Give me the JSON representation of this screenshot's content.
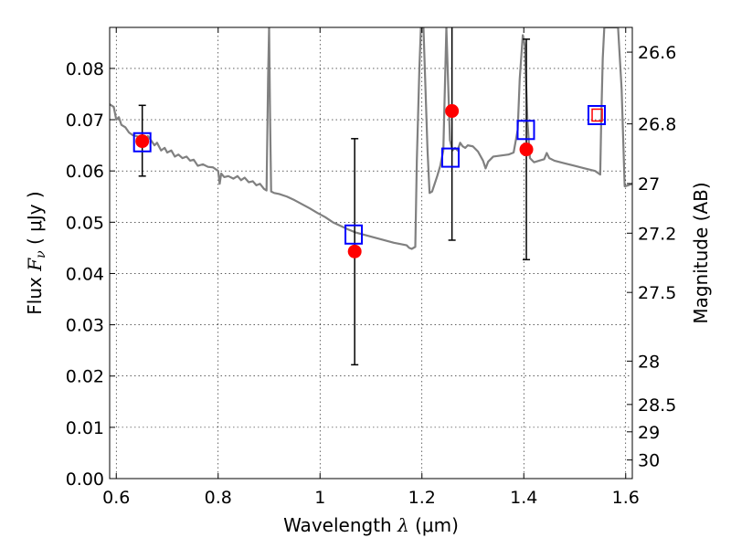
{
  "chart_data": {
    "type": "scatter",
    "xlabel_prefix": "Wavelength",
    "xlabel_symbol": "λ",
    "xlabel_unit": "(μm)",
    "ylabel_prefix": "Flux",
    "ylabel_symbol": "F",
    "ylabel_subscript": "ν",
    "ylabel_unit": "( μJy )",
    "ylabel_right": "Magnitude (AB)",
    "xlim": [
      0.587,
      1.613
    ],
    "ylim": [
      0.0,
      0.088
    ],
    "grid": true,
    "x_ticks": [
      {
        "value": 0.6,
        "label": "0.6"
      },
      {
        "value": 0.8,
        "label": "0.8"
      },
      {
        "value": 1.0,
        "label": "1"
      },
      {
        "value": 1.2,
        "label": "1.2"
      },
      {
        "value": 1.4,
        "label": "1.4"
      },
      {
        "value": 1.6,
        "label": "1.6"
      }
    ],
    "y_ticks": [
      {
        "value": 0.0,
        "label": "0.00"
      },
      {
        "value": 0.01,
        "label": "0.01"
      },
      {
        "value": 0.02,
        "label": "0.02"
      },
      {
        "value": 0.03,
        "label": "0.03"
      },
      {
        "value": 0.04,
        "label": "0.04"
      },
      {
        "value": 0.05,
        "label": "0.05"
      },
      {
        "value": 0.06,
        "label": "0.06"
      },
      {
        "value": 0.07,
        "label": "0.07"
      },
      {
        "value": 0.08,
        "label": "0.08"
      }
    ],
    "right_ticks": [
      {
        "value": 26.6,
        "label": "26.6"
      },
      {
        "value": 26.8,
        "label": "26.8"
      },
      {
        "value": 27.0,
        "label": "27"
      },
      {
        "value": 27.2,
        "label": "27.2"
      },
      {
        "value": 27.5,
        "label": "27.5"
      },
      {
        "value": 28.0,
        "label": "28"
      },
      {
        "value": 28.5,
        "label": "28.5"
      },
      {
        "value": 29.0,
        "label": "29"
      },
      {
        "value": 30.0,
        "label": "30"
      }
    ],
    "series": [
      {
        "kind": "model-spectrum",
        "color": "#808080",
        "points": [
          [
            0.587,
            0.073
          ],
          [
            0.595,
            0.0725
          ],
          [
            0.6,
            0.07
          ],
          [
            0.605,
            0.0705
          ],
          [
            0.61,
            0.069
          ],
          [
            0.618,
            0.0685
          ],
          [
            0.625,
            0.0675
          ],
          [
            0.632,
            0.067
          ],
          [
            0.64,
            0.0668
          ],
          [
            0.648,
            0.0664
          ],
          [
            0.655,
            0.066
          ],
          [
            0.662,
            0.0668
          ],
          [
            0.668,
            0.066
          ],
          [
            0.675,
            0.065
          ],
          [
            0.68,
            0.0655
          ],
          [
            0.688,
            0.064
          ],
          [
            0.695,
            0.0645
          ],
          [
            0.7,
            0.0636
          ],
          [
            0.708,
            0.064
          ],
          [
            0.715,
            0.0628
          ],
          [
            0.722,
            0.0632
          ],
          [
            0.73,
            0.0625
          ],
          [
            0.738,
            0.0628
          ],
          [
            0.745,
            0.062
          ],
          [
            0.752,
            0.0622
          ],
          [
            0.76,
            0.061
          ],
          [
            0.77,
            0.0613
          ],
          [
            0.78,
            0.0608
          ],
          [
            0.79,
            0.0607
          ],
          [
            0.8,
            0.06
          ],
          [
            0.803,
            0.0575
          ],
          [
            0.806,
            0.0595
          ],
          [
            0.812,
            0.0588
          ],
          [
            0.82,
            0.059
          ],
          [
            0.83,
            0.0585
          ],
          [
            0.838,
            0.059
          ],
          [
            0.845,
            0.0582
          ],
          [
            0.852,
            0.0587
          ],
          [
            0.86,
            0.0578
          ],
          [
            0.868,
            0.058
          ],
          [
            0.875,
            0.0572
          ],
          [
            0.882,
            0.0575
          ],
          [
            0.89,
            0.0565
          ],
          [
            0.895,
            0.0562
          ],
          [
            0.898,
            0.078
          ],
          [
            0.9,
            0.088
          ],
          [
            0.902,
            0.07
          ],
          [
            0.904,
            0.056
          ],
          [
            0.91,
            0.0557
          ],
          [
            0.92,
            0.0555
          ],
          [
            0.935,
            0.055
          ],
          [
            0.95,
            0.0543
          ],
          [
            0.965,
            0.0535
          ],
          [
            0.98,
            0.0527
          ],
          [
            0.995,
            0.0518
          ],
          [
            1.01,
            0.051
          ],
          [
            1.025,
            0.05
          ],
          [
            1.04,
            0.0493
          ],
          [
            1.055,
            0.0486
          ],
          [
            1.07,
            0.048
          ],
          [
            1.085,
            0.0476
          ],
          [
            1.1,
            0.0472
          ],
          [
            1.115,
            0.0468
          ],
          [
            1.13,
            0.0464
          ],
          [
            1.145,
            0.046
          ],
          [
            1.16,
            0.0457
          ],
          [
            1.17,
            0.0455
          ],
          [
            1.175,
            0.045
          ],
          [
            1.18,
            0.0448
          ],
          [
            1.187,
            0.0452
          ],
          [
            1.19,
            0.062
          ],
          [
            1.195,
            0.08
          ],
          [
            1.198,
            0.088
          ],
          [
            1.203,
            0.088
          ],
          [
            1.207,
            0.076
          ],
          [
            1.211,
            0.064
          ],
          [
            1.215,
            0.0557
          ],
          [
            1.22,
            0.056
          ],
          [
            1.225,
            0.0575
          ],
          [
            1.23,
            0.059
          ],
          [
            1.236,
            0.061
          ],
          [
            1.242,
            0.064
          ],
          [
            1.248,
            0.088
          ],
          [
            1.255,
            0.066
          ],
          [
            1.26,
            0.064
          ],
          [
            1.265,
            0.0645
          ],
          [
            1.27,
            0.064
          ],
          [
            1.275,
            0.0655
          ],
          [
            1.28,
            0.0648
          ],
          [
            1.285,
            0.0645
          ],
          [
            1.29,
            0.065
          ],
          [
            1.3,
            0.0648
          ],
          [
            1.31,
            0.0638
          ],
          [
            1.32,
            0.062
          ],
          [
            1.325,
            0.0605
          ],
          [
            1.33,
            0.0618
          ],
          [
            1.34,
            0.0628
          ],
          [
            1.355,
            0.063
          ],
          [
            1.37,
            0.0632
          ],
          [
            1.38,
            0.0636
          ],
          [
            1.388,
            0.068
          ],
          [
            1.392,
            0.078
          ],
          [
            1.398,
            0.0865
          ],
          [
            1.402,
            0.0845
          ],
          [
            1.407,
            0.07
          ],
          [
            1.412,
            0.0625
          ],
          [
            1.42,
            0.0617
          ],
          [
            1.43,
            0.062
          ],
          [
            1.44,
            0.0623
          ],
          [
            1.445,
            0.0635
          ],
          [
            1.45,
            0.0625
          ],
          [
            1.46,
            0.062
          ],
          [
            1.48,
            0.0615
          ],
          [
            1.5,
            0.061
          ],
          [
            1.52,
            0.0605
          ],
          [
            1.54,
            0.06
          ],
          [
            1.55,
            0.0593
          ],
          [
            1.552,
            0.07
          ],
          [
            1.555,
            0.082
          ],
          [
            1.558,
            0.088
          ],
          [
            1.57,
            0.088
          ],
          [
            1.585,
            0.088
          ],
          [
            1.592,
            0.076
          ],
          [
            1.598,
            0.057
          ],
          [
            1.605,
            0.0572
          ],
          [
            1.613,
            0.0575
          ]
        ]
      },
      {
        "kind": "observed-photometry",
        "color": "#ff0000",
        "points": [
          {
            "x": 0.651,
            "y": 0.0658,
            "yerr_low": 0.059,
            "yerr_high": 0.0728
          },
          {
            "x": 1.068,
            "y": 0.0443,
            "yerr_low": 0.0222,
            "yerr_high": 0.0663
          },
          {
            "x": 1.259,
            "y": 0.0717,
            "yerr_low": 0.0465,
            "yerr_high": 0.092
          },
          {
            "x": 1.405,
            "y": 0.0642,
            "yerr_low": 0.0427,
            "yerr_high": 0.0857
          }
        ]
      },
      {
        "kind": "model-photometry",
        "color": "#0000ff",
        "points": [
          {
            "x": 0.651,
            "y": 0.0656
          },
          {
            "x": 1.066,
            "y": 0.0476
          },
          {
            "x": 1.256,
            "y": 0.0626
          },
          {
            "x": 1.404,
            "y": 0.068
          },
          {
            "x": 1.543,
            "y": 0.0709
          }
        ]
      },
      {
        "kind": "upper-limit",
        "color": "#ff0000",
        "points": [
          {
            "x": 1.544,
            "y": 0.0709
          }
        ]
      }
    ]
  }
}
